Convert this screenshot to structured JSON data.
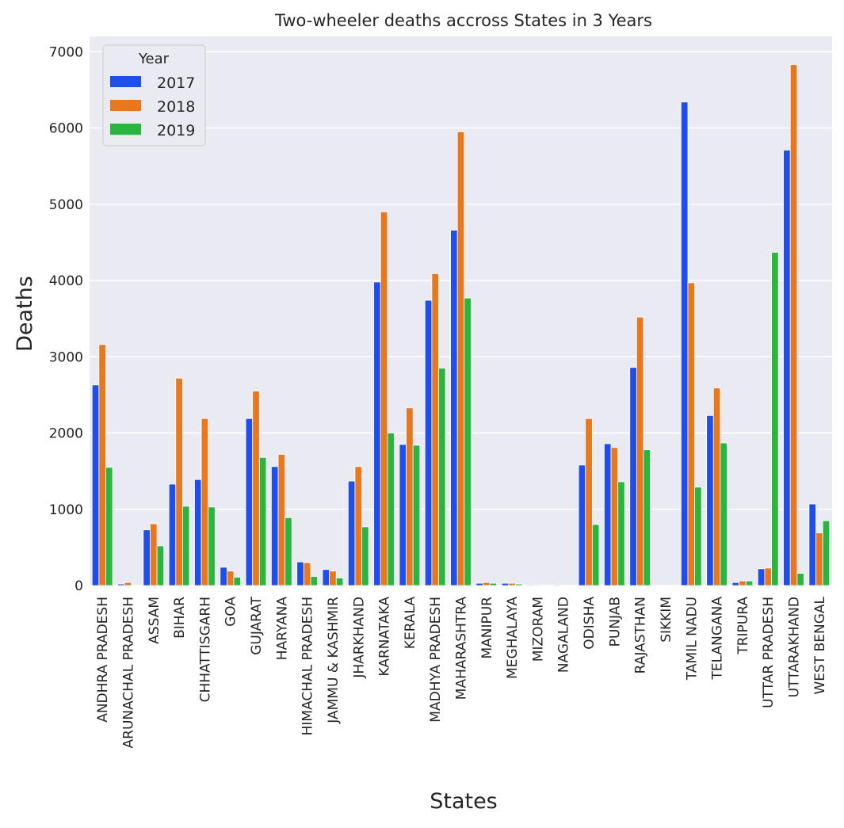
{
  "chart_data": {
    "type": "bar",
    "title": "Two-wheeler deaths accross States in 3 Years",
    "xlabel": "States",
    "ylabel": "Deaths",
    "ylim": [
      0,
      7200
    ],
    "yticks": [
      0,
      1000,
      2000,
      3000,
      4000,
      5000,
      6000,
      7000
    ],
    "grid": true,
    "legend": {
      "title": "Year",
      "placement": "top-left"
    },
    "categories": [
      "ANDHRA PRADESH",
      "ARUNACHAL PRADESH",
      "ASSAM",
      "BIHAR",
      "CHHATTISGARH",
      "GOA",
      "GUJARAT",
      "HARYANA",
      "HIMACHAL PRADESH",
      "JAMMU & KASHMIR",
      "JHARKHAND",
      "KARNATAKA",
      "KERALA",
      "MADHYA PRADESH",
      "MAHARASHTRA",
      "MANIPUR",
      "MEGHALAYA",
      "MIZORAM",
      "NAGALAND",
      "ODISHA",
      "PUNJAB",
      "RAJASTHAN",
      "SIKKIM",
      "TAMIL NADU",
      "TELANGANA",
      "TRIPURA",
      "UTTAR PRADESH",
      "UTTARAKHAND",
      "WEST BENGAL"
    ],
    "series": [
      {
        "name": "2017",
        "color": "#1f4fe8",
        "values": [
          2630,
          20,
          730,
          1330,
          1390,
          240,
          2190,
          1560,
          310,
          210,
          1370,
          3980,
          1850,
          3740,
          4660,
          30,
          30,
          10,
          10,
          1580,
          1860,
          2860,
          5,
          6340,
          2230,
          40,
          220,
          5710,
          1070
        ]
      },
      {
        "name": "2018",
        "color": "#e8781e",
        "values": [
          3160,
          40,
          810,
          2720,
          2190,
          190,
          2550,
          1720,
          300,
          190,
          1560,
          4900,
          2330,
          4090,
          5950,
          40,
          30,
          10,
          5,
          2190,
          1810,
          3520,
          5,
          3970,
          2590,
          60,
          230,
          6830,
          690
        ]
      },
      {
        "name": "2019",
        "color": "#2ab540",
        "values": [
          1550,
          5,
          520,
          1040,
          1030,
          110,
          1680,
          890,
          120,
          100,
          770,
          2000,
          1840,
          2850,
          3770,
          30,
          20,
          5,
          5,
          800,
          1360,
          1780,
          5,
          1290,
          1870,
          60,
          4370,
          160,
          850
        ]
      }
    ]
  }
}
